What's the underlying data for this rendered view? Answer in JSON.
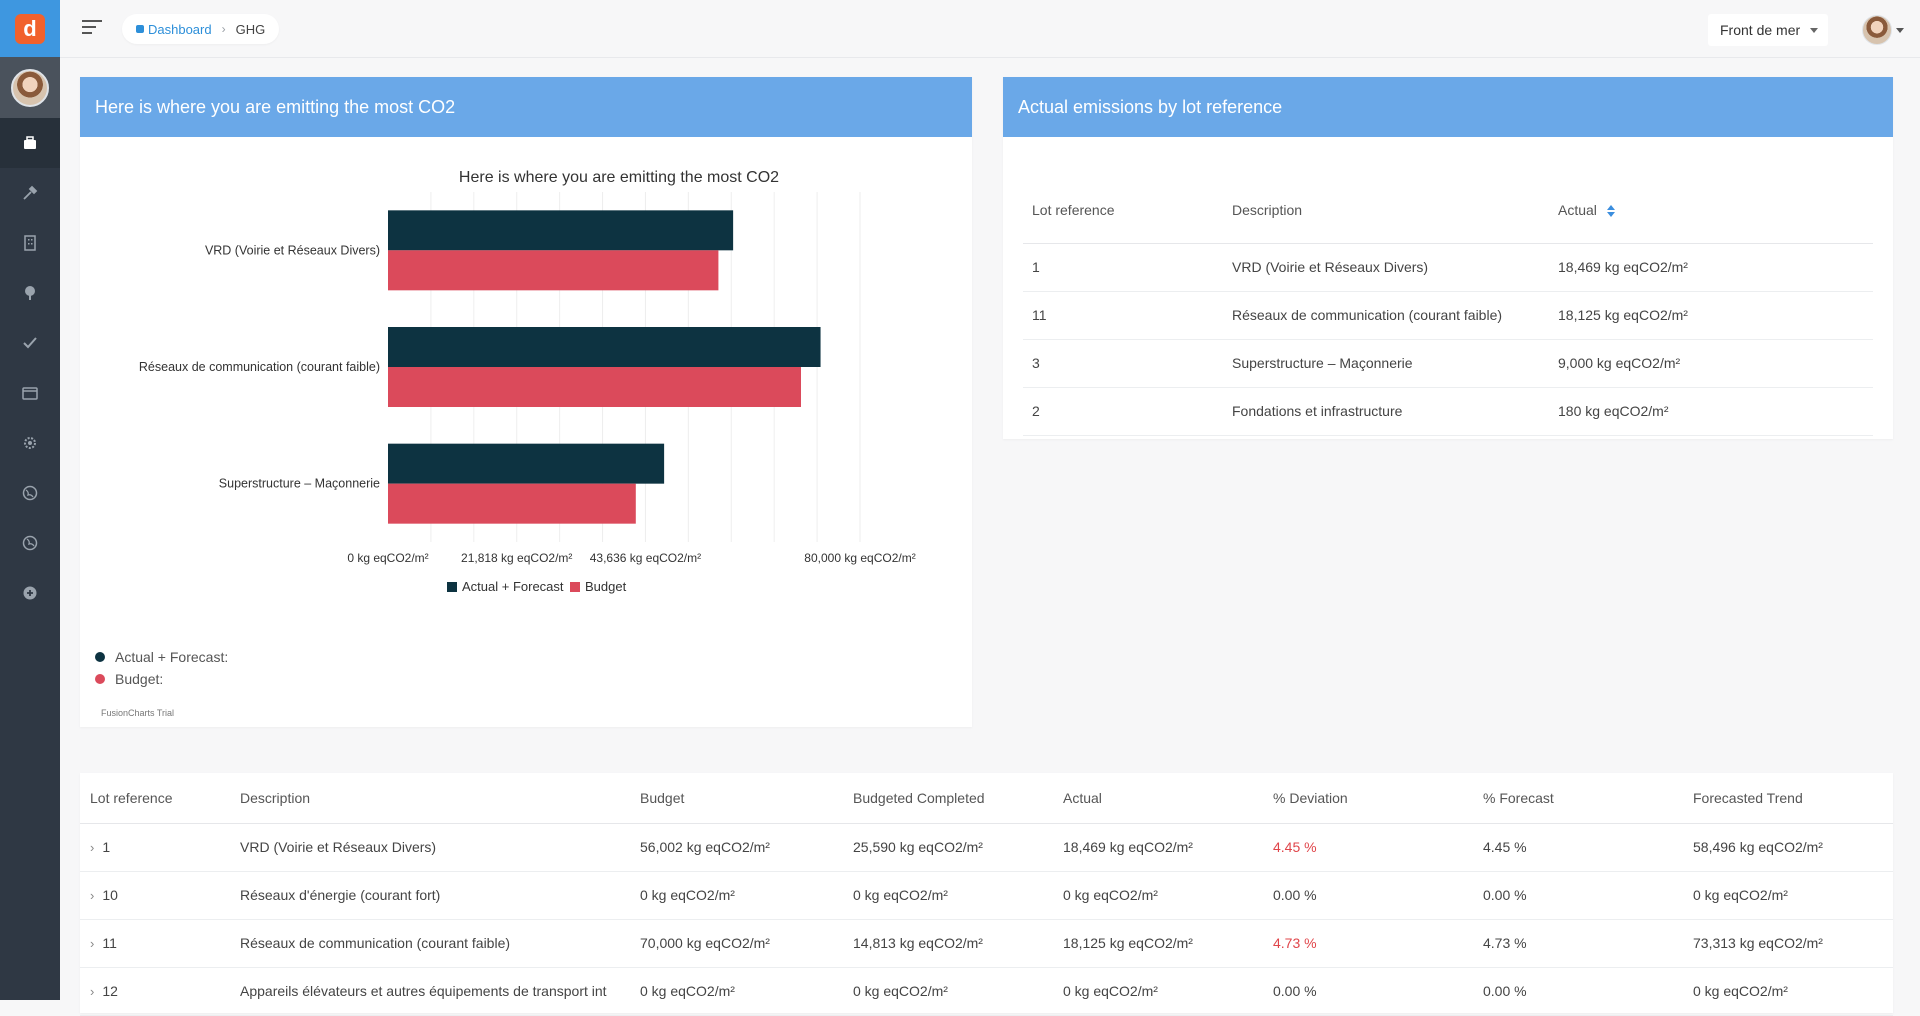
{
  "app": {
    "logo_letter": "d"
  },
  "breadcrumb": {
    "home": "Dashboard",
    "current": "GHG"
  },
  "topbar": {
    "project": "Front de mer"
  },
  "sidebar": {
    "items": [
      {
        "icon": "briefcase-icon",
        "active": true
      },
      {
        "icon": "tools-icon"
      },
      {
        "icon": "building-icon"
      },
      {
        "icon": "tree-icon"
      },
      {
        "icon": "check-icon"
      },
      {
        "icon": "folder-icon"
      },
      {
        "icon": "gear-icon"
      },
      {
        "icon": "globe-icon"
      },
      {
        "icon": "globe-alt-icon"
      },
      {
        "icon": "plus-circle-icon"
      }
    ]
  },
  "left_panel": {
    "title": "Here is where you are emitting the most CO2",
    "trial_label": "FusionCharts Trial",
    "tooltip_legend": [
      {
        "label": "Actual + Forecast:",
        "color": "#0d3341"
      },
      {
        "label": "Budget:",
        "color": "#db4a5b"
      }
    ]
  },
  "chart_data": {
    "type": "bar",
    "orientation": "horizontal",
    "title": "Here is where you are emitting the most CO2",
    "categories": [
      "VRD (Voirie et Réseaux Divers)",
      "Réseaux de communication (courant faible)",
      "Superstructure – Maçonnerie"
    ],
    "series": [
      {
        "name": "Actual + Forecast",
        "color": "#0d3341",
        "values": [
          58496,
          73313,
          46800
        ]
      },
      {
        "name": "Budget",
        "color": "#db4a5b",
        "values": [
          56002,
          70000,
          42000
        ]
      }
    ],
    "xlim": [
      0,
      80000
    ],
    "ticks": [
      {
        "value": 0,
        "label": "0 kg eqCO2/m²"
      },
      {
        "value": 21818,
        "label": "21,818 kg eqCO2/m²"
      },
      {
        "value": 43636,
        "label": "43,636 kg eqCO2/m²"
      },
      {
        "value": 80000,
        "label": "80,000 kg eqCO2/m²"
      }
    ],
    "grid_values": [
      7273,
      14545,
      21818,
      29091,
      36364,
      43636,
      50909,
      58182,
      65455,
      72727,
      80000
    ],
    "legend_position": "bottom"
  },
  "right_panel": {
    "title": "Actual emissions by lot reference",
    "headers": [
      "Lot reference",
      "Description",
      "Actual"
    ],
    "rows": [
      [
        "1",
        "VRD (Voirie et Réseaux Divers)",
        "18,469 kg eqCO2/m²"
      ],
      [
        "11",
        "Réseaux de communication (courant faible)",
        "18,125 kg eqCO2/m²"
      ],
      [
        "3",
        "Superstructure – Maçonnerie",
        "9,000 kg eqCO2/m²"
      ],
      [
        "2",
        "Fondations et infrastructure",
        "180 kg eqCO2/m²"
      ]
    ]
  },
  "bottom_table": {
    "headers": [
      "Lot reference",
      "Description",
      "Budget",
      "Budgeted Completed",
      "Actual",
      "% Deviation",
      "% Forecast",
      "Forecasted Trend"
    ],
    "rows": [
      {
        "lot": "1",
        "desc": "VRD (Voirie et Réseaux Divers)",
        "budget": "56,002 kg eqCO2/m²",
        "budgeted_completed": "25,590 kg eqCO2/m²",
        "actual": "18,469 kg eqCO2/m²",
        "deviation": "4.45 %",
        "deviation_negative": true,
        "forecast": "4.45 %",
        "trend": "58,496 kg eqCO2/m²"
      },
      {
        "lot": "10",
        "desc": "Réseaux d'énergie (courant fort)",
        "budget": "0 kg eqCO2/m²",
        "budgeted_completed": "0 kg eqCO2/m²",
        "actual": "0 kg eqCO2/m²",
        "deviation": "0.00 %",
        "deviation_negative": false,
        "forecast": "0.00 %",
        "trend": "0 kg eqCO2/m²"
      },
      {
        "lot": "11",
        "desc": "Réseaux de communication (courant faible)",
        "budget": "70,000 kg eqCO2/m²",
        "budgeted_completed": "14,813 kg eqCO2/m²",
        "actual": "18,125 kg eqCO2/m²",
        "deviation": "4.73 %",
        "deviation_negative": true,
        "forecast": "4.73 %",
        "trend": "73,313 kg eqCO2/m²"
      },
      {
        "lot": "12",
        "desc": "Appareils élévateurs et autres équipements de transport int",
        "budget": "0 kg eqCO2/m²",
        "budgeted_completed": "0 kg eqCO2/m²",
        "actual": "0 kg eqCO2/m²",
        "deviation": "0.00 %",
        "deviation_negative": false,
        "forecast": "0.00 %",
        "trend": "0 kg eqCO2/m²"
      }
    ]
  }
}
